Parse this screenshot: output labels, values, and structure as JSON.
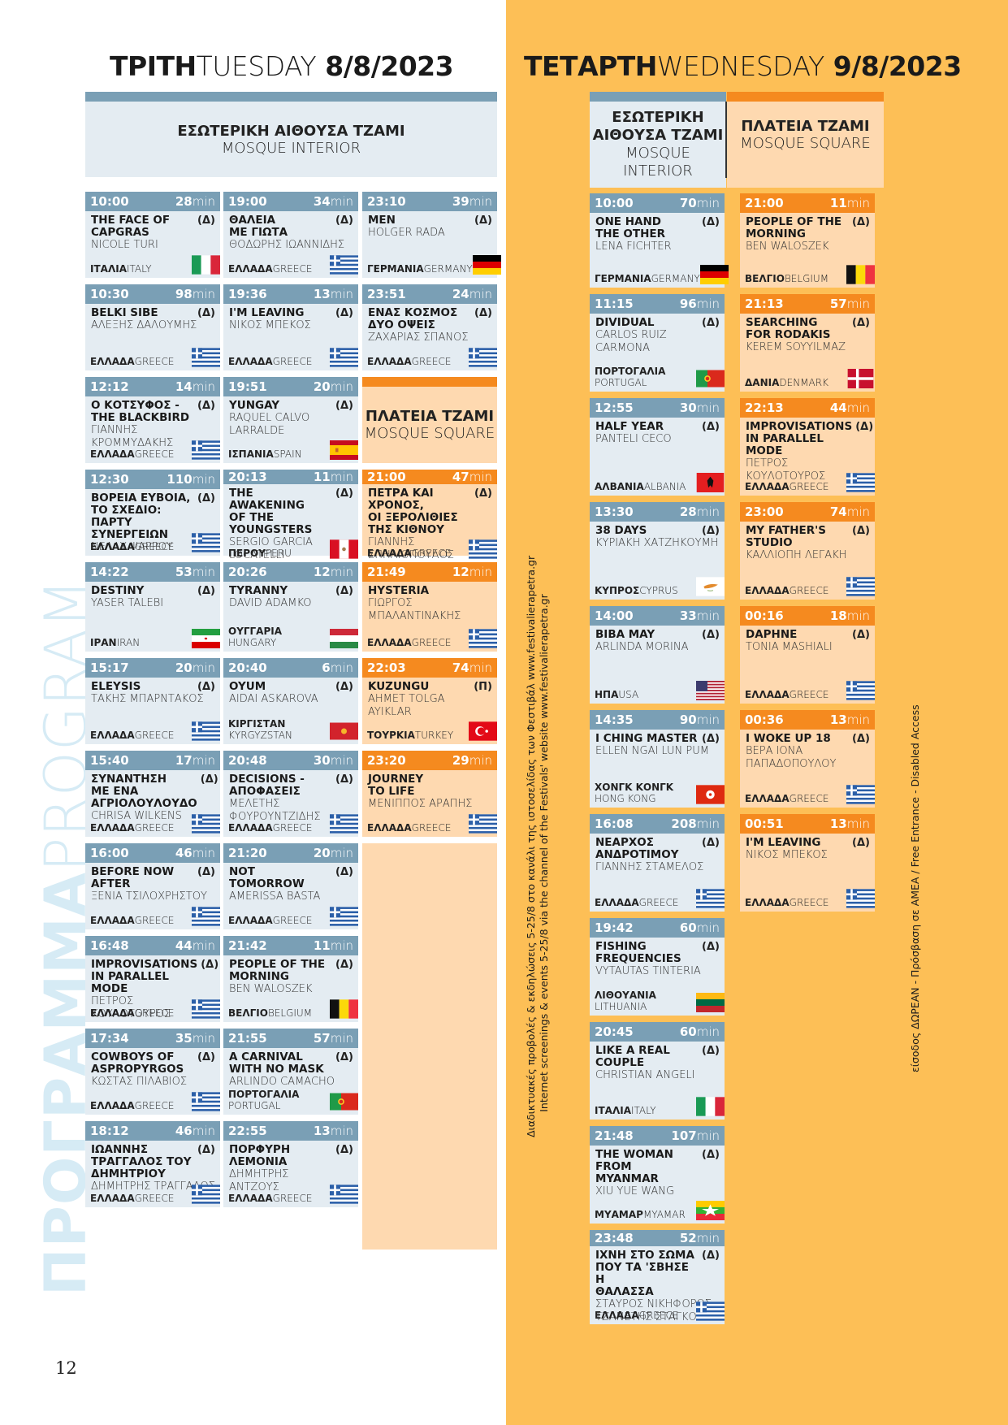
{
  "tuesday": {
    "title_gr": "ΤΡΙΤΗ",
    "title_en": "TUESDAY",
    "date": "8/8/2023",
    "venue_interior": {
      "gr": "ΕΣΩΤΕΡΙΚΗ ΑΙΘΟΥΣΑ ΤΖΑΜΙ",
      "en": "MOSQUE INTERIOR"
    },
    "venue_square": {
      "gr": "ΠΛΑΤΕΙΑ ΤΖΑΜΙ",
      "en": "MOSQUE SQUARE"
    },
    "col1": [
      {
        "time": "10:00",
        "dur": "28",
        "unit": "min",
        "title": "THE FACE OF\nCAPGRAS",
        "tag": "(Δ)",
        "dir": "NICOLE TURI",
        "c_gr": "ΙΤΑΛΙΑ",
        "c_en": "ITALY",
        "flag": "italy"
      },
      {
        "time": "10:30",
        "dur": "98",
        "unit": "min",
        "title": "BELKI SIBE",
        "tag": "(Δ)",
        "dir": "ΑΛΕΞΗΣ ΔΑΛΟΥΜΗΣ",
        "c_gr": "ΕΛΛΑΔΑ",
        "c_en": "GREECE",
        "flag": "greece"
      },
      {
        "time": "12:12",
        "dur": "14",
        "unit": "min",
        "title": "Ο ΚΟΤΣΥΦΟΣ -\nTHE BLACKBIRD",
        "tag": "(Δ)",
        "dir": "ΓΙΑΝΝΗΣ\nΚΡΟΜΜΥΔΑΚΗΣ",
        "c_gr": "ΕΛΛΑΔΑ",
        "c_en": "GREECE",
        "flag": "greece"
      },
      {
        "time": "12:30",
        "dur": "110",
        "unit": "min",
        "title": "ΒΟΡΕΙΑ ΕΥΒΟΙΑ,\nΤΟ ΣΧΕΔΙΟ:\nΠΑΡΤΥ ΣΥΝΕΡΓΕΙΩΝ",
        "tag": "(Δ)",
        "dir": "ΝΕΛΛΥ ΨΑΡΡΟΥ",
        "c_gr": "ΕΛΛΑΔΑ",
        "c_en": "GREECE",
        "flag": "greece"
      },
      {
        "time": "14:22",
        "dur": "53",
        "unit": "min",
        "title": "DESTINY",
        "tag": "(Δ)",
        "dir": "YASER TALEBI",
        "c_gr": "ΙΡΑΝ",
        "c_en": "IRAN",
        "flag": "iran"
      },
      {
        "time": "15:17",
        "dur": "20",
        "unit": "min",
        "title": "ELEYSIS",
        "tag": "(Δ)",
        "dir": "ΤΑΚΗΣ ΜΠΑΡΝΤΑΚΟΣ",
        "c_gr": "ΕΛΛΑΔΑ",
        "c_en": "GREECE",
        "flag": "greece"
      },
      {
        "time": "15:40",
        "dur": "17",
        "unit": "min",
        "title": "ΣΥΝΑΝΤΗΣΗ\nΜΕ ΕΝΑ\nΑΓΡΙΟΛΟΥΛΟΥΔΟ",
        "tag": "(Δ)",
        "dir": "CHRISA WILKENS",
        "c_gr": "ΕΛΛΑΔΑ",
        "c_en": "GREECE",
        "flag": "greece"
      },
      {
        "time": "16:00",
        "dur": "46",
        "unit": "min",
        "title": "BEFORE NOW\nAFTER",
        "tag": "(Δ)",
        "dir": "ΞΕΝΙΑ ΤΣΙΛΟΧΡΗΣΤΟΥ",
        "c_gr": "ΕΛΛΑΔΑ",
        "c_en": "GREECE",
        "flag": "greece"
      },
      {
        "time": "16:48",
        "dur": "44",
        "unit": "min",
        "title": "IMPROVISATIONS\nIN PARALLEL MODE",
        "tag": "(Δ)",
        "dir": "ΠΕΤΡΟΣ ΚΟΥΛΟΤΟΥΡΟΣ",
        "c_gr": "ΕΛΛΑΔΑ",
        "c_en": "GREECE",
        "flag": "greece"
      },
      {
        "time": "17:34",
        "dur": "35",
        "unit": "min",
        "title": "COWBOYS OF\nASPROPYRGOS",
        "tag": "(Δ)",
        "dir": "ΚΩΣΤΑΣ ΠΙΛΑΒΙΟΣ",
        "c_gr": "ΕΛΛΑΔΑ",
        "c_en": "GREECE",
        "flag": "greece"
      },
      {
        "time": "18:12",
        "dur": "46",
        "unit": "min",
        "title": "ΙΩΑΝΝΗΣ\nΤΡΑΓΓΑΛΟΣ ΤΟΥ\nΔΗΜΗΤΡΙΟΥ",
        "tag": "(Δ)",
        "dir": "ΔΗΜΗΤΡΗΣ ΤΡΑΓΓΑΛΟΣ",
        "c_gr": "ΕΛΛΑΔΑ",
        "c_en": "GREECE",
        "flag": "greece"
      }
    ],
    "col2": [
      {
        "time": "19:00",
        "dur": "34",
        "unit": "min",
        "title": "ΘΑΛΕΙΑ\nΜΕ ΓΙΩΤΑ",
        "tag": "(Δ)",
        "dir": "ΘΟΔΩΡΗΣ ΙΩΑΝΝΙΔΗΣ",
        "c_gr": "ΕΛΛΑΔΑ",
        "c_en": "GREECE",
        "flag": "greece"
      },
      {
        "time": "19:36",
        "dur": "13",
        "unit": "min",
        "title": "I'M LEAVING",
        "tag": "(Δ)",
        "dir": "ΝΙΚΟΣ ΜΠΕΚΟΣ",
        "c_gr": "ΕΛΛΑΔΑ",
        "c_en": "GREECE",
        "flag": "greece"
      },
      {
        "time": "19:51",
        "dur": "20",
        "unit": "min",
        "title": "YUNGAY",
        "tag": "(Δ)",
        "dir": "RAQUEL CALVO\nLARRALDE",
        "c_gr": "ΙΣΠΑΝΙΑ",
        "c_en": "SPAIN",
        "flag": "spain"
      },
      {
        "time": "20:13",
        "dur": "11",
        "unit": "min",
        "title": "THE AWAKENING\nOF THE YOUNGSTERS",
        "tag": "(Δ)",
        "dir": "SERGIO GARCIA\nLOCATELLI",
        "c_gr": "ΠΕΡΟΥ",
        "c_en": "PERU",
        "flag": "peru"
      },
      {
        "time": "20:26",
        "dur": "12",
        "unit": "min",
        "title": "TYRANNY",
        "tag": "(Δ)",
        "dir": "DAVID ADAMKO",
        "c_gr": "ΟΥΓΓΑΡΙΑ",
        "c_en": "HUNGARY",
        "flag": "hungary",
        "stack": true
      },
      {
        "time": "20:40",
        "dur": "6",
        "unit": "min",
        "title": "OYUM",
        "tag": "(Δ)",
        "dir": "AIDAI ASKAROVA",
        "c_gr": "ΚΙΡΓΙΣΤΑΝ",
        "c_en": "KYRGYZSTAN",
        "flag": "kyrgyzstan",
        "stack": true
      },
      {
        "time": "20:48",
        "dur": "30",
        "unit": "min",
        "title": "DECISIONS -\nΑΠΟΦΑΣΕΙΣ",
        "tag": "(Δ)",
        "dir": "ΜΕΛΕΤΗΣ\nΦΟΥΡΟΥΝΤΖΙΔΗΣ",
        "c_gr": "ΕΛΛΑΔΑ",
        "c_en": "GREECE",
        "flag": "greece"
      },
      {
        "time": "21:20",
        "dur": "20",
        "unit": "min",
        "title": "NOT\nTOMORROW",
        "tag": "(Δ)",
        "dir": "AMERISSA BASTA",
        "c_gr": "ΕΛΛΑΔΑ",
        "c_en": "GREECE",
        "flag": "greece"
      },
      {
        "time": "21:42",
        "dur": "11",
        "unit": "min",
        "title": "PEOPLE OF THE\nMORNING",
        "tag": "(Δ)",
        "dir": "BEN WALOSZEK",
        "c_gr": "ΒΕΛΓΙΟ",
        "c_en": "BELGIUM",
        "flag": "belgium"
      },
      {
        "time": "21:55",
        "dur": "57",
        "unit": "min",
        "title": "A CARNIVAL\nWITH NO MASK",
        "tag": "(Δ)",
        "dir": "ARLINDO CAMACHO",
        "c_gr": "ΠΟΡΤΟΓΑΛΙΑ",
        "c_en": "PORTUGAL",
        "flag": "portugal",
        "stack": true
      },
      {
        "time": "22:55",
        "dur": "13",
        "unit": "min",
        "title": "ΠΟΡΦΥΡΗ\nΛΕΜΟΝΙΑ",
        "tag": "(Δ)",
        "dir": "ΔΗΜΗΤΡΗΣ\nΑΝΤΖΟΥΣ",
        "c_gr": "ΕΛΛΑΔΑ",
        "c_en": "GREECE",
        "flag": "greece"
      }
    ],
    "col3_interior": [
      {
        "time": "23:10",
        "dur": "39",
        "unit": "min",
        "title": "MEN",
        "tag": "(Δ)",
        "dir": "HOLGER RADA",
        "c_gr": "ΓΕΡΜΑΝΙΑ",
        "c_en": "GERMANY",
        "flag": "germany"
      },
      {
        "time": "23:51",
        "dur": "24",
        "unit": "min",
        "title": "ΕΝΑΣ ΚΟΣΜΟΣ\nΔΥΟ ΟΨΕΙΣ",
        "tag": "(Δ)",
        "dir": "ΖΑΧΑΡΙΑΣ ΣΠΑΝΟΣ",
        "c_gr": "ΕΛΛΑΔΑ",
        "c_en": "GREECE",
        "flag": "greece"
      }
    ],
    "col3_square": [
      {
        "time": "21:00",
        "dur": "47",
        "unit": "min",
        "title": "ΠΕΤΡΑ ΚΑΙ ΧΡΟΝΟΣ,\nΟΙ ΞΕΡΟΛΙΘΙΕΣ\nΤΗΣ ΚΙΘΝΟΥ",
        "tag": "(Δ)",
        "dir": "ΓΙΑΝΝΗΣ ΣΠΗΛΙΟΠΟΥΛΟΣ",
        "c_gr": "ΕΛΛΑΔΑ",
        "c_en": "GREECE",
        "flag": "greece"
      },
      {
        "time": "21:49",
        "dur": "12",
        "unit": "min",
        "title": "HYSTERIA",
        "tag": "",
        "dir": "ΓΙΩΡΓΟΣ\nΜΠΑΛΑΝΤΙΝΑΚΗΣ",
        "c_gr": "ΕΛΛΑΔΑ",
        "c_en": "GREECE",
        "flag": "greece"
      },
      {
        "time": "22:03",
        "dur": "74",
        "unit": "min",
        "title": "KUZUNGU",
        "tag": "(Π)",
        "dir": "AHMET TOLGA\nAYIKLAR",
        "c_gr": "ΤΟΥΡΚΙΑ",
        "c_en": "TURKEY",
        "flag": "turkey"
      },
      {
        "time": "23:20",
        "dur": "29",
        "unit": "min",
        "title": "JOURNEY\nTO LIFE",
        "tag": "",
        "dir": "ΜΕΝΙΠΠΟΣ ΑΡΑΠΗΣ",
        "c_gr": "ΕΛΛΑΔΑ",
        "c_en": "GREECE",
        "flag": "greece"
      }
    ]
  },
  "wednesday": {
    "title_gr": "ΤΕΤΑΡΤΗ",
    "title_en": "WEDNESDAY",
    "date": "9/8/2023",
    "venue_interior": {
      "gr": "ΕΣΩΤΕΡΙΚΗ\nΑΙΘΟΥΣΑ ΤΖΑΜΙ",
      "en": "MOSQUE\nINTERIOR"
    },
    "venue_square": {
      "gr": "ΠΛΑΤΕΙΑ ΤΖΑΜΙ",
      "en": "MOSQUE SQUARE"
    },
    "interior": [
      {
        "time": "10:00",
        "dur": "70",
        "unit": "min",
        "title": "ONE HAND\nTHE OTHER",
        "tag": "(Δ)",
        "dir": "LENA FICHTER",
        "c_gr": "ΓΕΡΜΑΝΙΑ",
        "c_en": "GERMANY",
        "flag": "germany"
      },
      {
        "time": "11:15",
        "dur": "96",
        "unit": "min",
        "title": "DIVIDUAL",
        "tag": "(Δ)",
        "dir": "CARLOS RUIZ\nCARMONA",
        "c_gr": "ΠΟΡΤΟΓΑΛΙΑ",
        "c_en": "PORTUGAL",
        "flag": "portugal",
        "stack": true
      },
      {
        "time": "12:55",
        "dur": "30",
        "unit": "min",
        "title": "HALF YEAR",
        "tag": "(Δ)",
        "dir": "PANTELI CECO",
        "c_gr": "ΑΛΒΑΝΙΑ",
        "c_en": "ALBANIA",
        "flag": "albania"
      },
      {
        "time": "13:30",
        "dur": "28",
        "unit": "min",
        "title": "38 DAYS",
        "tag": "(Δ)",
        "dir": "ΚΥΡΙΑΚΗ ΧΑΤΖΗΚΟΥΜΗ",
        "c_gr": "ΚΥΠΡΟΣ",
        "c_en": "CYPRUS",
        "flag": "cyprus"
      },
      {
        "time": "14:00",
        "dur": "33",
        "unit": "min",
        "title": "BIBA MAY",
        "tag": "(Δ)",
        "dir": "ARLINDA MORINA",
        "c_gr": "ΗΠΑ",
        "c_en": "USA",
        "flag": "usa"
      },
      {
        "time": "14:35",
        "dur": "90",
        "unit": "min",
        "title": "I CHING MASTER",
        "tag": "(Δ)",
        "dir": "ELLEN NGAI LUN PUM",
        "c_gr": "ΧΟΝΓΚ ΚΟΝΓΚ",
        "c_en": "HONG KONG",
        "flag": "hongkong",
        "stack": true
      },
      {
        "time": "16:08",
        "dur": "208",
        "unit": "min",
        "title": "ΝΕΑΡΧΟΣ\nΑΝΔΡΟΤΙΜΟΥ",
        "tag": "(Δ)",
        "dir": "ΓΙΑΝΝΗΣ ΣΤΑΜΕΛΟΣ",
        "c_gr": "ΕΛΛΑΔΑ",
        "c_en": "GREECE",
        "flag": "greece"
      },
      {
        "time": "19:42",
        "dur": "60",
        "unit": "min",
        "title": "FISHING\nFREQUENCIES",
        "tag": "(Δ)",
        "dir": "VYTAUTAS TINTERIA",
        "c_gr": "ΛΙΘΟΥΑΝΙΑ",
        "c_en": "LITHUANIA",
        "flag": "lithuania",
        "stack": true
      },
      {
        "time": "20:45",
        "dur": "60",
        "unit": "min",
        "title": "LIKE A REAL\nCOUPLE",
        "tag": "(Δ)",
        "dir": "CHRISTIAN ANGELI",
        "c_gr": "ΙΤΑΛΙΑ",
        "c_en": "ITALY",
        "flag": "italy"
      },
      {
        "time": "21:48",
        "dur": "107",
        "unit": "min",
        "title": "THE WOMAN\nFROM MYANMAR",
        "tag": "(Δ)",
        "dir": "XIU YUE WANG",
        "c_gr": "ΜΥΑΜΑΡ",
        "c_en": "MYAMAR",
        "flag": "myanmar"
      },
      {
        "time": "23:48",
        "dur": "52",
        "unit": "min",
        "title": "ΙΧΝΗ ΣΤΟ ΣΩΜΑ\nΠΟΥ ΤΑ 'ΣΒΗΣΕ Η\nΘΑΛΑΣΣΑ",
        "tag": "(Δ)",
        "dir": "ΣΤΑΥΡΟΣ ΝΙΚΗΦΟΡΟΣ\nΤΖΑΝΕΤΗΣ ΣΤΑΓΚΟΣ",
        "c_gr": "ΕΛΛΑΔΑ",
        "c_en": "GREECE",
        "flag": "greece"
      }
    ],
    "square": [
      {
        "time": "21:00",
        "dur": "11",
        "unit": "min",
        "title": "PEOPLE OF THE\nMORNING",
        "tag": "(Δ)",
        "dir": "BEN WALOSZEK",
        "c_gr": "ΒΕΛΓΙΟ",
        "c_en": "BELGIUM",
        "flag": "belgium"
      },
      {
        "time": "21:13",
        "dur": "57",
        "unit": "min",
        "title": "SEARCHING\nFOR RODAKIS",
        "tag": "(Δ)",
        "dir": "KEREM SOYYILMAZ",
        "c_gr": "ΔΑΝΙΑ",
        "c_en": "DENMARK",
        "flag": "denmark"
      },
      {
        "time": "22:13",
        "dur": "44",
        "unit": "min",
        "title": "IMPROVISATIONS\nIN PARALLEL MODE",
        "tag": "(Δ)",
        "dir": "ΠΕΤΡΟΣ ΚΟΥΛΟΤΟΥΡΟΣ",
        "c_gr": "ΕΛΛΑΔΑ",
        "c_en": "GREECE",
        "flag": "greece"
      },
      {
        "time": "23:00",
        "dur": "74",
        "unit": "min",
        "title": "MY FATHER'S\nSTUDIO",
        "tag": "(Δ)",
        "dir": "ΚΑΛΛΙΟΠΗ ΛΕΓΑΚΗ",
        "c_gr": "ΕΛΛΑΔΑ",
        "c_en": "GREECE",
        "flag": "greece"
      },
      {
        "time": "00:16",
        "dur": "18",
        "unit": "min",
        "title": "DAPHNE",
        "tag": "(Δ)",
        "dir": "TONIA MASHIALI",
        "c_gr": "ΕΛΛΑΔΑ",
        "c_en": "GREECE",
        "flag": "greece"
      },
      {
        "time": "00:36",
        "dur": "13",
        "unit": "min",
        "title": "I WOKE UP 18",
        "tag": "(Δ)",
        "dir": "ΒΕΡΑ ΙΟΝΑ\nΠΑΠΑΔΟΠΟΥΛΟΥ",
        "c_gr": "ΕΛΛΑΔΑ",
        "c_en": "GREECE",
        "flag": "greece"
      },
      {
        "time": "00:51",
        "dur": "13",
        "unit": "min",
        "title": "I'M LEAVING",
        "tag": "(Δ)",
        "dir": "ΝΙΚΟΣ ΜΠΕΚΟΣ",
        "c_gr": "ΕΛΛΑΔΑ",
        "c_en": "GREECE",
        "flag": "greece"
      }
    ]
  },
  "side": {
    "program_gr": "ΠΡΟΓΡΑΜΜΑ",
    "program_en": "PROGRAM",
    "online_note_1": "Διαδικτυακές προβολές & εκδηλώσεις 5-25/8 στο κανάλι της ιστοσελίδας των Φεστιβάλ www.festivalierapetra.gr",
    "online_note_2": "Internet screenings & events 5-25/8 via the channel of the Festivals' website www.festivalierapetra.gr",
    "free_note": "είσοδος ΔΩΡΕΑΝ - Πρόσβαση σε ΑΜΕΑ / Free Entrance - Disabled Access"
  },
  "page_number": "12",
  "colors": {
    "blue_header": "#7a9fb5",
    "blue_body": "#e4ecf2",
    "orange_header": "#f58a1f",
    "orange_body": "#fed9b0",
    "page_orange": "#fdbf56"
  }
}
